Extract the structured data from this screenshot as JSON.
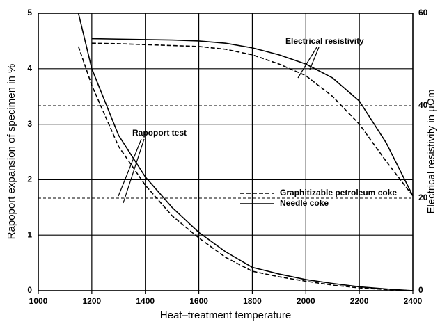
{
  "chart_data": {
    "type": "line",
    "x_label": "Heat–treatment temperature",
    "y_label": "Rapoport expansion of specimen in %",
    "y2_label": "Electrical resistivity in μΩm",
    "annotations": [
      "Electrical resistivity",
      "Rapoport test"
    ],
    "x": [
      1150,
      1200,
      1300,
      1400,
      1500,
      1600,
      1700,
      1800,
      1900,
      2000,
      2100,
      2200,
      2300,
      2400
    ],
    "series": [
      {
        "name": "Graphitizable petroleum coke",
        "color": "#000000",
        "dashed": true,
        "values": [
          4.4,
          3.7,
          2.6,
          1.9,
          1.35,
          0.95,
          0.6,
          0.35,
          0.25,
          0.17,
          0.1,
          0.05,
          0.02,
          0
        ]
      },
      {
        "name": "Needle coke",
        "color": "#000000",
        "dashed": false,
        "values": [
          5,
          4.0,
          2.8,
          2.05,
          1.5,
          1.05,
          0.7,
          0.42,
          0.3,
          0.2,
          0.13,
          0.07,
          0.03,
          0
        ]
      },
      {
        "color": "#000000",
        "dashed": true,
        "axis": "y2",
        "values": [
          null,
          53.5,
          53.4,
          53.2,
          53.0,
          52.8,
          52.2,
          51,
          49,
          46.5,
          42,
          36,
          28,
          20.5
        ]
      },
      {
        "color": "#000000",
        "dashed": false,
        "axis": "y2",
        "values": [
          null,
          54.5,
          54.4,
          54.3,
          54.2,
          54,
          53.5,
          52.5,
          51,
          49,
          46,
          41,
          32,
          20.5
        ]
      }
    ],
    "xlim": [
      1000,
      2400
    ],
    "xticks": [
      1000,
      1200,
      1400,
      1600,
      1800,
      2000,
      2200,
      2400
    ],
    "ylim": [
      0,
      5
    ],
    "yticks": [
      0,
      1,
      2,
      3,
      4,
      5
    ],
    "y2lim": [
      0,
      60
    ],
    "y2ticks": [
      0,
      20,
      40,
      60
    ],
    "grid": true,
    "legend": "lower right"
  }
}
